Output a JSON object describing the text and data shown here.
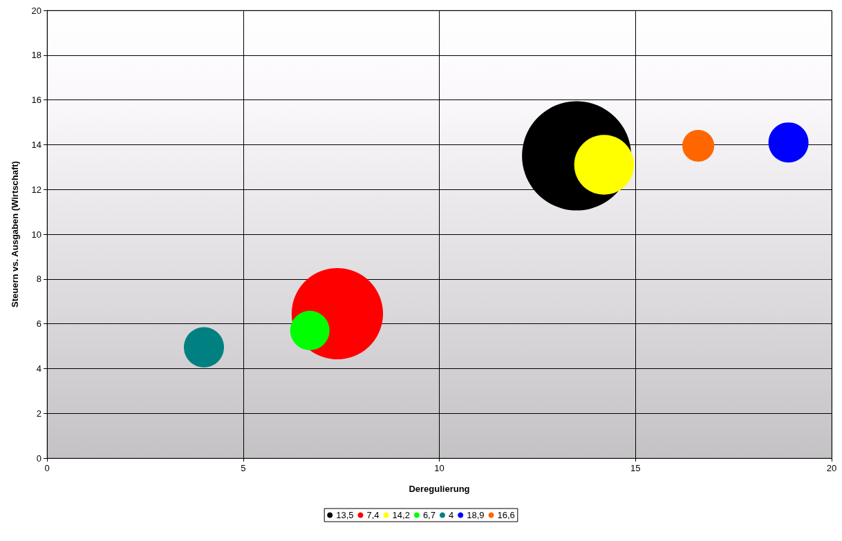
{
  "chart_data": {
    "type": "bubble",
    "xlabel": "Deregulierung",
    "ylabel": "Steuern vs. Ausgaben (Wirtschaft)",
    "xlim": [
      0,
      20
    ],
    "xticks": [
      0,
      5,
      10,
      15,
      20
    ],
    "ylim": [
      0,
      20
    ],
    "yticks": [
      0,
      2,
      4,
      6,
      8,
      10,
      12,
      14,
      16,
      18,
      20
    ],
    "grid": true,
    "legend": "bottom",
    "series": [
      {
        "name": "13,5",
        "color": "#000000",
        "x": [
          13.5
        ],
        "values": [
          13.5
        ],
        "sizes": [
          1
        ]
      },
      {
        "name": "7,4",
        "color": "#ff0000",
        "x": [
          7.4
        ],
        "values": [
          6.45
        ],
        "sizes": [
          0.7
        ]
      },
      {
        "name": "14,2",
        "color": "#ffff00",
        "x": [
          14.2
        ],
        "values": [
          13.1
        ],
        "sizes": [
          0.3
        ]
      },
      {
        "name": "6,7",
        "color": "#00ff00",
        "x": [
          6.7
        ],
        "values": [
          5.7
        ],
        "sizes": [
          0.13
        ]
      },
      {
        "name": "4",
        "color": "#008080",
        "x": [
          4.0
        ],
        "values": [
          4.95
        ],
        "sizes": [
          0.135
        ]
      },
      {
        "name": "18,9",
        "color": "#0000ff",
        "x": [
          18.9
        ],
        "values": [
          14.1
        ],
        "sizes": [
          0.135
        ]
      },
      {
        "name": "16,6",
        "color": "#ff6600",
        "x": [
          16.6
        ],
        "values": [
          13.95
        ],
        "sizes": [
          0.085
        ]
      }
    ]
  }
}
